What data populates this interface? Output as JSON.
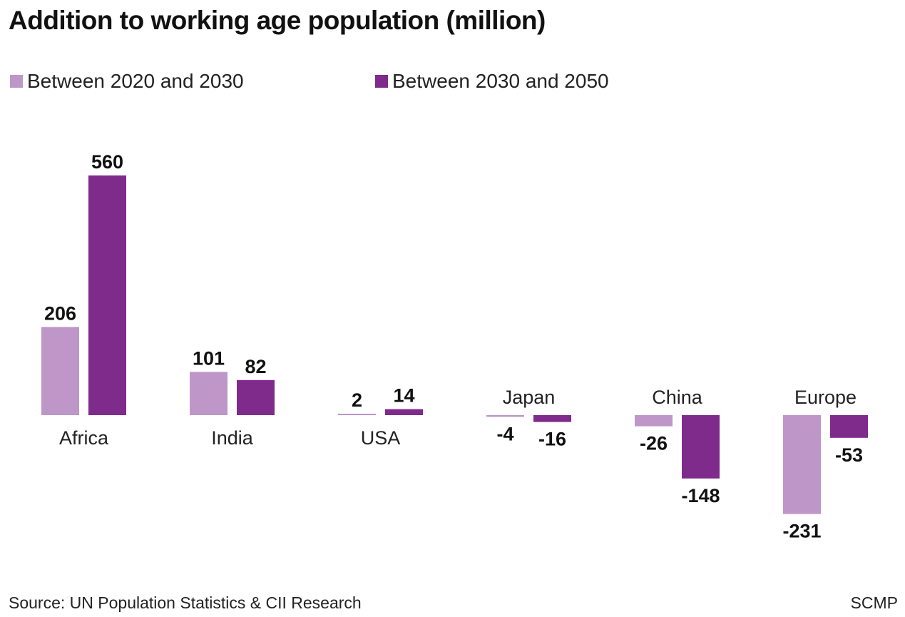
{
  "chart_data": {
    "type": "bar",
    "title": "Addition to working age population (million)",
    "categories": [
      "Africa",
      "India",
      "USA",
      "Japan",
      "China",
      "Europe"
    ],
    "series": [
      {
        "name": "Between 2020 and 2030",
        "color": "#bf96c8",
        "values": [
          206,
          101,
          2,
          -4,
          -26,
          -231
        ]
      },
      {
        "name": "Between 2030 and 2050",
        "color": "#7f2b8c",
        "values": [
          560,
          82,
          14,
          -16,
          -148,
          -53
        ]
      }
    ],
    "value_labels": [
      [
        "206",
        "101",
        "2",
        "-4",
        "-26",
        "-231"
      ],
      [
        "560",
        "82",
        "14",
        "-16",
        "-148",
        "-53"
      ]
    ],
    "xlabel": "",
    "ylabel": "",
    "grid": false,
    "legend": "top-left"
  },
  "footer": {
    "source": "Source: UN Population Statistics & CII Research",
    "credit": "SCMP"
  }
}
